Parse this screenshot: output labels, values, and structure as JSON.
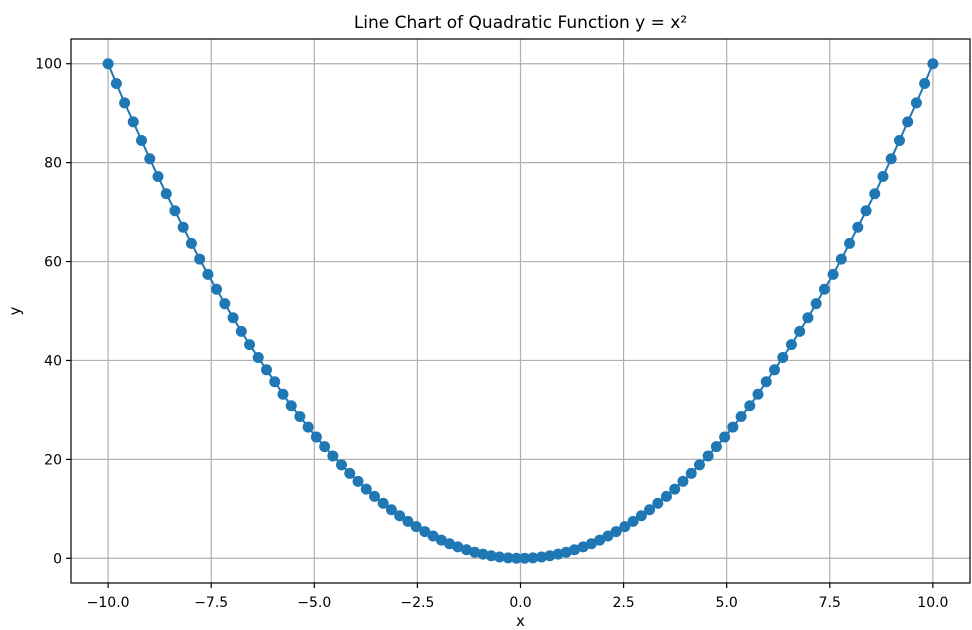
{
  "chart_data": {
    "type": "line",
    "title": "Line Chart of Quadratic Function y = x²",
    "xlabel": "x",
    "ylabel": "y",
    "xlim": [
      -10.9,
      10.9
    ],
    "ylim": [
      -5,
      105
    ],
    "xticks": [
      -10,
      -7.5,
      -5,
      -2.5,
      0,
      2.5,
      5,
      7.5,
      10
    ],
    "xtick_labels": [
      "−10.0",
      "−7.5",
      "−5.0",
      "−2.5",
      "0.0",
      "2.5",
      "5.0",
      "7.5",
      "10.0"
    ],
    "yticks": [
      0,
      20,
      40,
      60,
      80,
      100
    ],
    "ytick_labels": [
      "0",
      "20",
      "40",
      "60",
      "80",
      "100"
    ],
    "grid": true,
    "color": "#1f77b4",
    "marker": "circle",
    "series": [
      {
        "x": [
          -10.0,
          -9.8,
          -9.6,
          -9.39,
          -9.19,
          -8.99,
          -8.79,
          -8.59,
          -8.38,
          -8.18,
          -7.98,
          -7.78,
          -7.58,
          -7.37,
          -7.17,
          -6.97,
          -6.77,
          -6.57,
          -6.36,
          -6.16,
          -5.96,
          -5.76,
          -5.56,
          -5.35,
          -5.15,
          -4.95,
          -4.75,
          -4.55,
          -4.34,
          -4.14,
          -3.94,
          -3.74,
          -3.54,
          -3.33,
          -3.13,
          -2.93,
          -2.73,
          -2.53,
          -2.32,
          -2.12,
          -1.92,
          -1.72,
          -1.52,
          -1.31,
          -1.11,
          -0.91,
          -0.71,
          -0.51,
          -0.3,
          -0.1,
          0.1,
          0.3,
          0.51,
          0.71,
          0.91,
          1.11,
          1.31,
          1.52,
          1.72,
          1.92,
          2.12,
          2.32,
          2.53,
          2.73,
          2.93,
          3.13,
          3.33,
          3.54,
          3.74,
          3.94,
          4.14,
          4.34,
          4.55,
          4.75,
          4.95,
          5.15,
          5.35,
          5.56,
          5.76,
          5.96,
          6.16,
          6.36,
          6.57,
          6.77,
          6.97,
          7.17,
          7.37,
          7.58,
          7.78,
          7.98,
          8.18,
          8.38,
          8.59,
          8.79,
          8.99,
          9.19,
          9.39,
          9.6,
          9.8,
          10.0
        ],
        "y": [
          100.0,
          96.0,
          92.08,
          88.24,
          84.47,
          80.79,
          77.2,
          73.7,
          70.27,
          66.93,
          63.67,
          60.5,
          57.41,
          54.4,
          51.48,
          48.64,
          45.88,
          43.2,
          40.61,
          38.11,
          35.7,
          33.17,
          30.85,
          28.66,
          26.53,
          24.51,
          22.57,
          20.69,
          18.89,
          17.17,
          15.56,
          13.99,
          12.51,
          11.12,
          9.81,
          8.6,
          7.47,
          6.4,
          5.4,
          4.5,
          3.68,
          2.94,
          2.3,
          1.72,
          1.23,
          0.83,
          0.51,
          0.26,
          0.09,
          0.01,
          0.01,
          0.09,
          0.26,
          0.51,
          0.83,
          1.23,
          1.72,
          2.3,
          2.94,
          3.68,
          4.5,
          5.4,
          6.4,
          7.47,
          8.6,
          9.81,
          11.12,
          12.51,
          13.99,
          15.56,
          17.17,
          18.89,
          20.69,
          22.57,
          24.51,
          26.53,
          28.66,
          30.85,
          33.17,
          35.7,
          38.11,
          40.61,
          43.2,
          45.88,
          48.64,
          51.48,
          54.4,
          57.41,
          60.5,
          63.67,
          66.93,
          70.27,
          73.7,
          77.2,
          80.79,
          84.47,
          88.24,
          92.08,
          96.0,
          100.0
        ]
      }
    ]
  }
}
